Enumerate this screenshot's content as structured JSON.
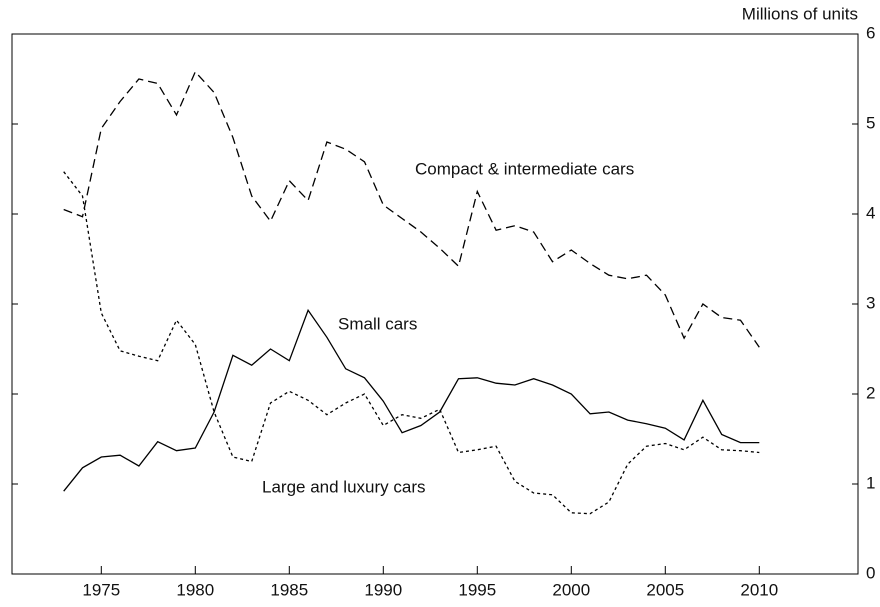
{
  "chart_data": {
    "type": "line",
    "y_label": "Millions of units",
    "x": [
      1973,
      1974,
      1975,
      1976,
      1977,
      1978,
      1979,
      1980,
      1981,
      1982,
      1983,
      1984,
      1985,
      1986,
      1987,
      1988,
      1989,
      1990,
      1991,
      1992,
      1993,
      1994,
      1995,
      1996,
      1997,
      1998,
      1999,
      2000,
      2001,
      2002,
      2003,
      2004,
      2005,
      2006,
      2007,
      2008,
      2009,
      2010
    ],
    "series": [
      {
        "name": "Compact & intermediate cars",
        "color": "#000000",
        "dash": "dashed",
        "values": [
          4.05,
          3.97,
          4.95,
          5.25,
          5.5,
          5.45,
          5.1,
          5.58,
          5.35,
          4.85,
          4.2,
          3.92,
          4.37,
          4.15,
          4.8,
          4.72,
          4.58,
          4.1,
          3.95,
          3.8,
          3.62,
          3.42,
          4.25,
          3.82,
          3.87,
          3.8,
          3.47,
          3.6,
          3.45,
          3.32,
          3.28,
          3.32,
          3.1,
          2.62,
          3.0,
          2.85,
          2.82,
          2.52
        ]
      },
      {
        "name": "Small cars",
        "color": "#000000",
        "dash": "solid",
        "values": [
          0.92,
          1.18,
          1.3,
          1.32,
          1.2,
          1.47,
          1.37,
          1.4,
          1.8,
          2.43,
          2.32,
          2.5,
          2.37,
          2.93,
          2.63,
          2.28,
          2.18,
          1.92,
          1.57,
          1.65,
          1.8,
          2.17,
          2.18,
          2.12,
          2.1,
          2.17,
          2.1,
          2.0,
          1.78,
          1.8,
          1.71,
          1.67,
          1.62,
          1.49,
          1.93,
          1.55,
          1.46,
          1.46
        ]
      },
      {
        "name": "Large and luxury cars",
        "color": "#000000",
        "dash": "dotted",
        "values": [
          4.47,
          4.2,
          2.9,
          2.48,
          2.42,
          2.37,
          2.82,
          2.55,
          1.8,
          1.3,
          1.25,
          1.9,
          2.03,
          1.93,
          1.77,
          1.9,
          2.0,
          1.65,
          1.77,
          1.73,
          1.83,
          1.35,
          1.38,
          1.42,
          1.03,
          0.9,
          0.88,
          0.68,
          0.67,
          0.8,
          1.22,
          1.42,
          1.45,
          1.38,
          1.52,
          1.38,
          1.37,
          1.35
        ]
      }
    ],
    "xlim": [
      1970.25,
      2015.25
    ],
    "xticks": [
      1975,
      1980,
      1985,
      1990,
      1995,
      2000,
      2005,
      2010
    ],
    "ylim": [
      0,
      6
    ],
    "yticks": [
      0,
      1,
      2,
      3,
      4,
      5,
      6
    ]
  }
}
